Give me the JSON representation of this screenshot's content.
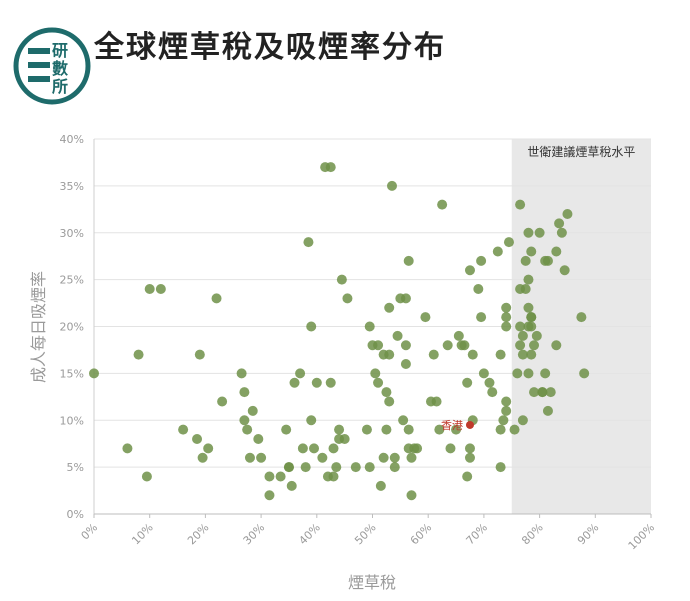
{
  "header": {
    "title": "全球煙草稅及吸煙率分布",
    "logo_text": [
      "研",
      "數",
      "所"
    ]
  },
  "colors": {
    "point": "#6f9048",
    "highlight": "#c0392b",
    "zone_fill": "#e8e8e8",
    "grid": "#e3e3e3",
    "logo": "#1e6b6b"
  },
  "chart_data": {
    "type": "scatter",
    "xlabel": "煙草稅",
    "ylabel": "成人每日吸煙率",
    "xlim": [
      0,
      100
    ],
    "ylim": [
      0,
      40
    ],
    "x_ticks": [
      "0%",
      "10%",
      "20%",
      "30%",
      "40%",
      "50%",
      "60%",
      "70%",
      "80%",
      "90%",
      "100%"
    ],
    "y_ticks": [
      "0%",
      "5%",
      "10%",
      "15%",
      "20%",
      "25%",
      "30%",
      "35%",
      "40%"
    ],
    "grid": "horizontal",
    "reference_zone": {
      "label": "世衛建議煙草稅水平",
      "x_from": 75,
      "x_to": 100
    },
    "highlight": {
      "label": "香港",
      "x": 67.5,
      "y": 9.5
    },
    "points": [
      [
        0,
        15
      ],
      [
        6,
        7
      ],
      [
        8,
        17
      ],
      [
        9.5,
        4
      ],
      [
        10,
        24
      ],
      [
        12,
        24
      ],
      [
        16,
        9
      ],
      [
        18.5,
        8
      ],
      [
        19,
        17
      ],
      [
        19.5,
        6
      ],
      [
        20.5,
        7
      ],
      [
        22,
        23
      ],
      [
        23,
        12
      ],
      [
        26.5,
        15
      ],
      [
        27,
        10
      ],
      [
        27,
        13
      ],
      [
        27.5,
        9
      ],
      [
        28,
        6
      ],
      [
        28.5,
        11
      ],
      [
        29.5,
        8
      ],
      [
        30,
        6
      ],
      [
        31.5,
        4
      ],
      [
        31.5,
        2
      ],
      [
        33.5,
        4
      ],
      [
        34.5,
        9
      ],
      [
        35,
        5
      ],
      [
        35,
        5
      ],
      [
        35.5,
        3
      ],
      [
        36,
        14
      ],
      [
        37,
        15
      ],
      [
        37.5,
        7
      ],
      [
        38,
        5
      ],
      [
        38.5,
        29
      ],
      [
        39,
        20
      ],
      [
        39,
        10
      ],
      [
        39.5,
        7
      ],
      [
        40,
        14
      ],
      [
        41,
        6
      ],
      [
        41.5,
        37
      ],
      [
        42,
        4
      ],
      [
        42.5,
        14
      ],
      [
        42.5,
        37
      ],
      [
        43,
        7
      ],
      [
        43,
        4
      ],
      [
        43.5,
        5
      ],
      [
        44,
        9
      ],
      [
        44,
        8
      ],
      [
        44.5,
        25
      ],
      [
        45,
        8
      ],
      [
        45.5,
        23
      ],
      [
        47,
        5
      ],
      [
        49,
        9
      ],
      [
        49.5,
        5
      ],
      [
        49.5,
        20
      ],
      [
        50,
        18
      ],
      [
        50.5,
        15
      ],
      [
        51,
        18
      ],
      [
        51,
        14
      ],
      [
        51.5,
        3
      ],
      [
        52,
        17
      ],
      [
        52,
        6
      ],
      [
        52.5,
        9
      ],
      [
        52.5,
        13
      ],
      [
        53,
        12
      ],
      [
        53,
        17
      ],
      [
        53,
        22
      ],
      [
        53.5,
        35
      ],
      [
        54,
        6
      ],
      [
        54,
        5
      ],
      [
        54.5,
        19
      ],
      [
        55,
        23
      ],
      [
        55.5,
        10
      ],
      [
        56,
        23
      ],
      [
        56,
        18
      ],
      [
        56,
        16
      ],
      [
        56.5,
        27
      ],
      [
        56.5,
        9
      ],
      [
        56.5,
        7
      ],
      [
        57,
        2
      ],
      [
        57,
        6
      ],
      [
        57.5,
        7
      ],
      [
        58,
        7
      ],
      [
        59.5,
        21
      ],
      [
        60.5,
        12
      ],
      [
        61,
        17
      ],
      [
        61.5,
        12
      ],
      [
        62,
        9
      ],
      [
        62.5,
        33
      ],
      [
        63.5,
        18
      ],
      [
        64,
        7
      ],
      [
        65,
        9
      ],
      [
        65.5,
        19
      ],
      [
        66,
        18
      ],
      [
        66.5,
        18
      ],
      [
        67,
        4
      ],
      [
        67,
        14
      ],
      [
        67.5,
        26
      ],
      [
        67.5,
        7
      ],
      [
        67.5,
        6
      ],
      [
        68,
        10
      ],
      [
        68,
        17
      ],
      [
        69,
        24
      ],
      [
        69.5,
        21
      ],
      [
        69.5,
        27
      ],
      [
        70,
        15
      ],
      [
        71,
        14
      ],
      [
        71.5,
        13
      ],
      [
        72.5,
        28
      ],
      [
        73,
        17
      ],
      [
        73,
        9
      ],
      [
        73,
        5
      ],
      [
        73.5,
        10
      ],
      [
        74,
        21
      ],
      [
        74,
        20
      ],
      [
        74,
        22
      ],
      [
        74,
        12
      ],
      [
        74,
        11
      ],
      [
        74.5,
        29
      ],
      [
        75.5,
        9
      ],
      [
        76,
        15
      ],
      [
        76.5,
        24
      ],
      [
        76.5,
        33
      ],
      [
        76.5,
        20
      ],
      [
        76.5,
        18
      ],
      [
        77,
        19
      ],
      [
        77,
        10
      ],
      [
        77,
        17
      ],
      [
        77.5,
        27
      ],
      [
        77.5,
        24
      ],
      [
        78,
        20
      ],
      [
        78,
        22
      ],
      [
        78,
        25
      ],
      [
        78,
        30
      ],
      [
        78,
        15
      ],
      [
        78.5,
        21
      ],
      [
        78.5,
        28
      ],
      [
        78.5,
        21
      ],
      [
        78.5,
        20
      ],
      [
        78.5,
        17
      ],
      [
        79,
        18
      ],
      [
        79,
        13
      ],
      [
        79.5,
        19
      ],
      [
        80,
        30
      ],
      [
        80.5,
        13
      ],
      [
        80.5,
        13
      ],
      [
        81,
        27
      ],
      [
        81,
        15
      ],
      [
        81.5,
        27
      ],
      [
        81.5,
        11
      ],
      [
        82,
        13
      ],
      [
        83,
        18
      ],
      [
        83,
        28
      ],
      [
        83.5,
        31
      ],
      [
        84,
        30
      ],
      [
        84.5,
        26
      ],
      [
        85,
        32
      ],
      [
        87.5,
        21
      ],
      [
        88,
        15
      ]
    ]
  }
}
